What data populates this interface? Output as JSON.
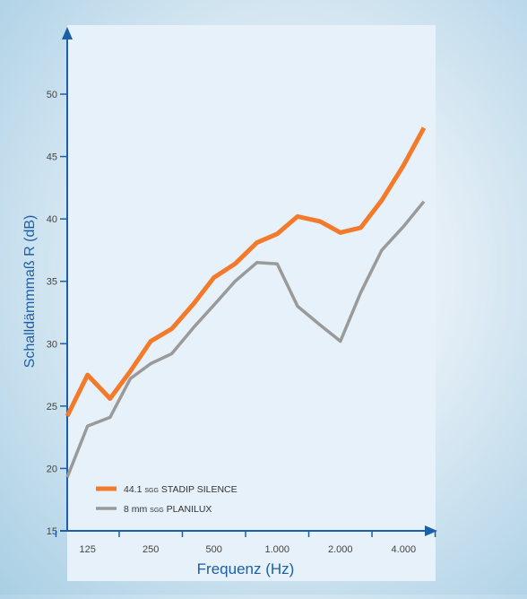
{
  "chart_data": {
    "type": "line",
    "ylabel": "Schalldämmmaß R (dB)",
    "xlabel": "Frequenz (Hz)",
    "ylim": [
      15,
      50
    ],
    "yticks": [
      15,
      20,
      25,
      30,
      35,
      40,
      45,
      50
    ],
    "x": [
      100,
      125,
      160,
      200,
      250,
      315,
      400,
      500,
      630,
      800,
      1000,
      1250,
      1600,
      2000,
      2500,
      3150,
      4000,
      5000
    ],
    "xtick_labels": [
      "125",
      "250",
      "500",
      "1.000",
      "2.000",
      "4.000"
    ],
    "xtick_positions": [
      125,
      250,
      500,
      1000,
      2000,
      4000
    ],
    "series": [
      {
        "name": "44.1 SGG STADIP SILENCE",
        "name_prefix": "44.1 ",
        "name_small": "SGG",
        "name_suffix": " STADIP SILENCE",
        "color": "#f47a2b",
        "values": [
          24.2,
          27.5,
          25.6,
          27.8,
          30.2,
          31.2,
          33.2,
          35.3,
          36.4,
          38.1,
          38.8,
          40.2,
          39.8,
          38.9,
          39.3,
          41.5,
          44.3,
          47.3
        ]
      },
      {
        "name": "8 mm SGG PLANILUX",
        "name_prefix": "8 mm ",
        "name_small": "SGG",
        "name_suffix": " PLANILUX",
        "color": "#9a9a9a",
        "values": [
          19.3,
          23.4,
          24.1,
          27.2,
          28.4,
          29.2,
          31.3,
          33.1,
          35.0,
          36.5,
          36.4,
          33.0,
          31.5,
          30.2,
          34.1,
          37.5,
          39.4,
          41.4
        ]
      }
    ],
    "legend": "bottom-left",
    "grid": false
  },
  "colors": {
    "axis": "#1b5fa8",
    "plot_background": "#e6f1f9"
  }
}
